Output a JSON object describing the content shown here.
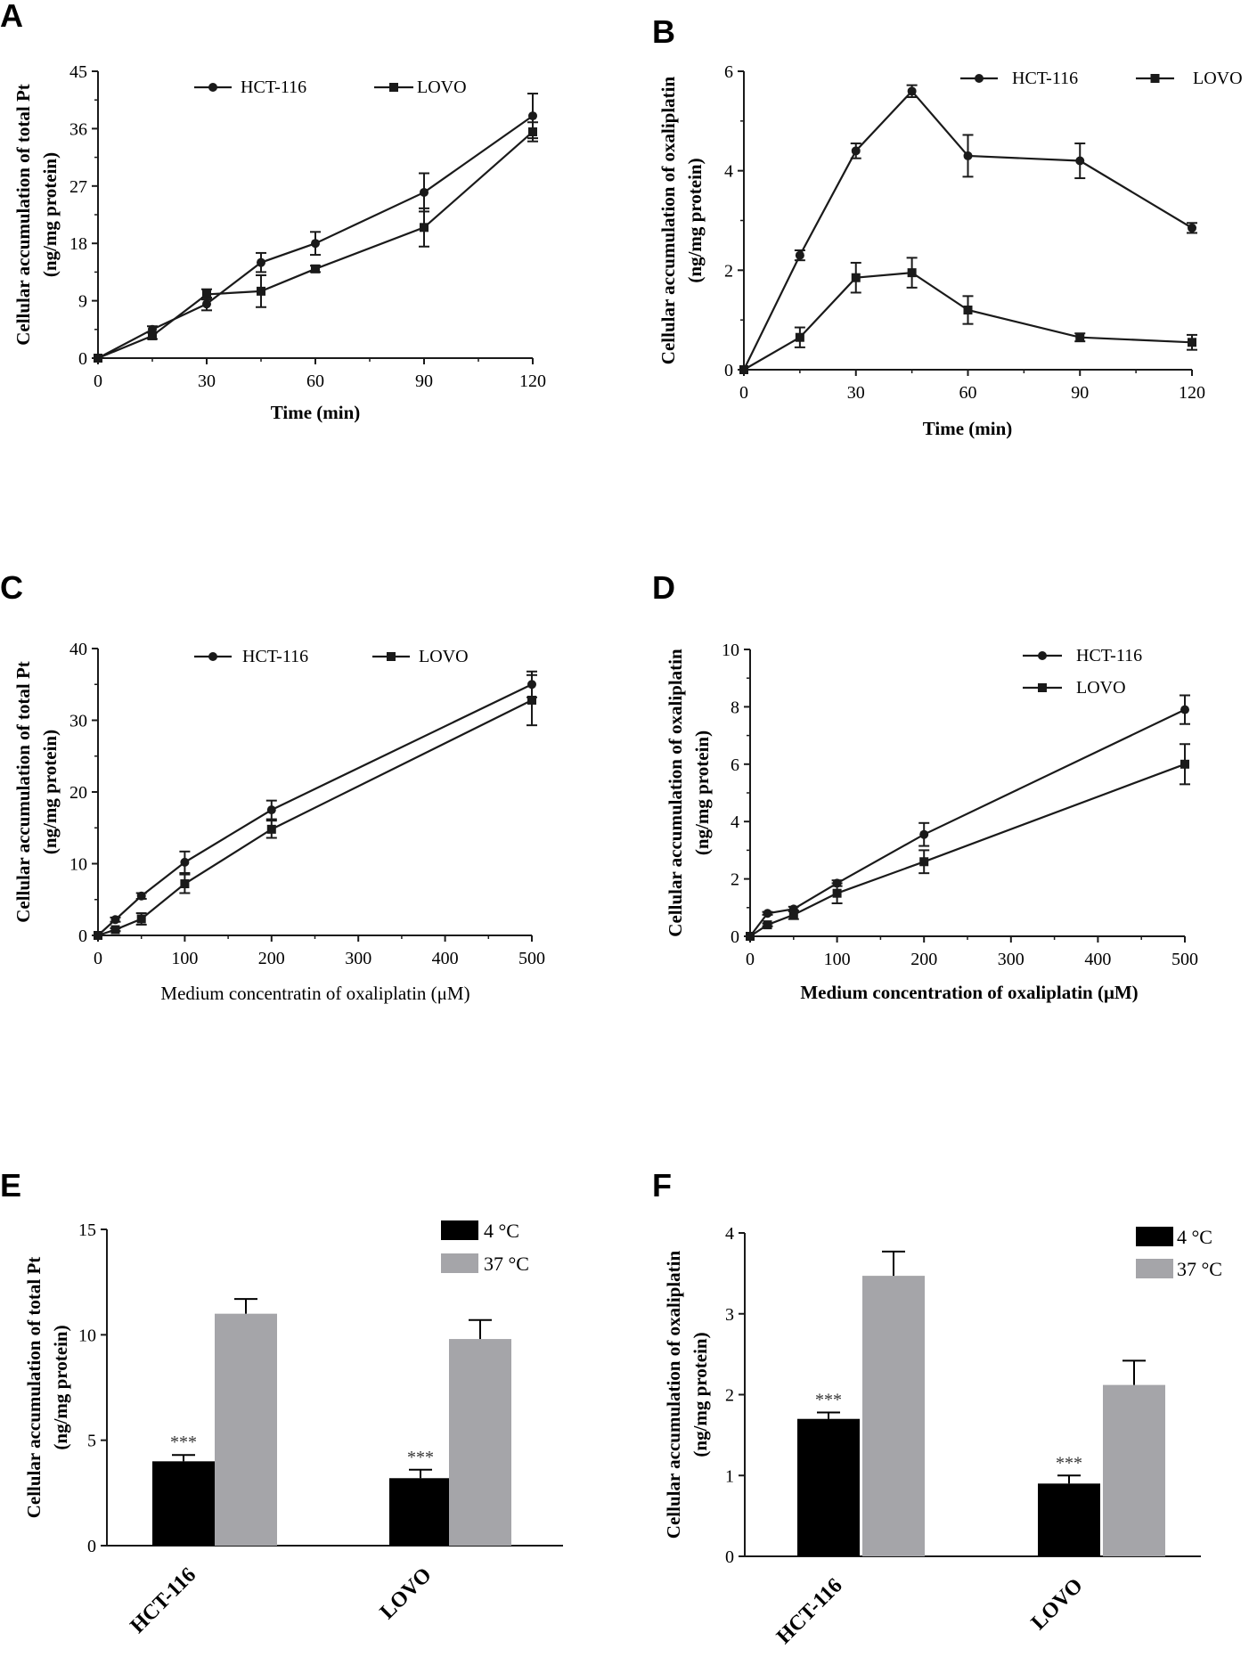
{
  "colors": {
    "line": "#1a1a1a",
    "bar_cold": "#000000",
    "bar_warm": "#a5a5a9",
    "background": "#ffffff"
  },
  "chart_data": [
    {
      "panel": "A",
      "type": "line",
      "title": "",
      "xlabel": "Time (min)",
      "ylabel_line1": "Cellular accumulation of total Pt",
      "ylabel_line2": "(ng/mg protein)",
      "xlim": [
        0,
        120
      ],
      "ylim": [
        0,
        45
      ],
      "xticks": [
        0,
        30,
        60,
        90,
        120
      ],
      "yticks": [
        0,
        9,
        18,
        27,
        36,
        45
      ],
      "legend_position": "top",
      "series": [
        {
          "name": "HCT-116",
          "marker": "circle",
          "x": [
            0,
            15,
            30,
            45,
            60,
            90,
            120
          ],
          "y": [
            0,
            4.5,
            8.5,
            15,
            18,
            26,
            38
          ],
          "err": [
            0,
            0.5,
            1.0,
            1.5,
            1.8,
            3.0,
            3.5
          ]
        },
        {
          "name": "LOVO",
          "marker": "square",
          "x": [
            0,
            15,
            30,
            45,
            60,
            90,
            120
          ],
          "y": [
            0,
            3.5,
            10,
            10.5,
            14,
            20.5,
            35.5
          ],
          "err": [
            0,
            0.5,
            0.8,
            2.5,
            0.5,
            3.0,
            1.5
          ]
        }
      ]
    },
    {
      "panel": "B",
      "type": "line",
      "title": "",
      "xlabel": "Time (min)",
      "ylabel_line1": "Cellular accumulation of oxaliplatin",
      "ylabel_line2": "(ng/mg protein)",
      "xlim": [
        0,
        120
      ],
      "ylim": [
        0,
        6
      ],
      "xticks": [
        0,
        30,
        60,
        90,
        120
      ],
      "yticks": [
        0,
        2,
        4,
        6
      ],
      "legend_position": "top",
      "series": [
        {
          "name": "HCT-116",
          "marker": "circle",
          "x": [
            0,
            15,
            30,
            45,
            60,
            90,
            120
          ],
          "y": [
            0,
            2.3,
            4.4,
            5.6,
            4.3,
            4.2,
            2.85
          ],
          "err": [
            0,
            0.1,
            0.15,
            0.12,
            0.42,
            0.35,
            0.1
          ]
        },
        {
          "name": "LOVO",
          "marker": "square",
          "x": [
            0,
            15,
            30,
            45,
            60,
            90,
            120
          ],
          "y": [
            0,
            0.65,
            1.85,
            1.95,
            1.2,
            0.65,
            0.55
          ],
          "err": [
            0,
            0.2,
            0.3,
            0.3,
            0.28,
            0.08,
            0.15
          ]
        }
      ]
    },
    {
      "panel": "C",
      "type": "line",
      "title": "",
      "xlabel": "Medium concentratin of oxaliplatin (μM)",
      "xlabel_bold": false,
      "ylabel_line1": "Cellular accumulation of total Pt",
      "ylabel_line2": "(ng/mg protein)",
      "xlim": [
        0,
        500
      ],
      "ylim": [
        0,
        40
      ],
      "xticks": [
        0,
        100,
        200,
        300,
        400,
        500
      ],
      "yticks": [
        0,
        10,
        20,
        30,
        40
      ],
      "legend_position": "top",
      "series": [
        {
          "name": "HCT-116",
          "marker": "circle",
          "x": [
            0,
            20,
            50,
            100,
            200,
            500
          ],
          "y": [
            0,
            2.2,
            5.5,
            10.2,
            17.5,
            35
          ],
          "err": [
            0,
            0.3,
            0.4,
            1.5,
            1.3,
            1.8
          ]
        },
        {
          "name": "LOVO",
          "marker": "square",
          "x": [
            0,
            20,
            50,
            100,
            200,
            500
          ],
          "y": [
            0,
            0.8,
            2.3,
            7.2,
            14.8,
            32.8
          ],
          "err": [
            0,
            0.2,
            0.8,
            1.3,
            1.2,
            3.5
          ]
        }
      ]
    },
    {
      "panel": "D",
      "type": "line",
      "title": "",
      "xlabel": "Medium concentration of oxaliplatin (μM)",
      "xlabel_bold": true,
      "ylabel_line1": "Cellular accumulation of oxaliplatin",
      "ylabel_line2": "(ng/mg protein)",
      "xlim": [
        0,
        500
      ],
      "ylim": [
        0,
        10
      ],
      "xticks": [
        0,
        100,
        200,
        300,
        400,
        500
      ],
      "yticks": [
        0,
        2,
        4,
        6,
        8,
        10
      ],
      "legend_position": "top-right",
      "series": [
        {
          "name": "HCT-116",
          "marker": "circle",
          "x": [
            0,
            20,
            50,
            100,
            200,
            500
          ],
          "y": [
            0,
            0.8,
            0.95,
            1.85,
            3.55,
            7.9
          ],
          "err": [
            0,
            0.05,
            0.08,
            0.1,
            0.4,
            0.5
          ]
        },
        {
          "name": "LOVO",
          "marker": "square",
          "x": [
            0,
            20,
            50,
            100,
            200,
            500
          ],
          "y": [
            0,
            0.4,
            0.75,
            1.5,
            2.6,
            6.0
          ],
          "err": [
            0,
            0.05,
            0.15,
            0.35,
            0.4,
            0.7
          ]
        }
      ]
    },
    {
      "panel": "E",
      "type": "bar",
      "title": "",
      "xlabel": "",
      "ylabel_line1": "Cellular accumulation of total Pt",
      "ylabel_line2": "(ng/mg protein)",
      "ylim": [
        0,
        15
      ],
      "yticks": [
        0,
        5,
        10,
        15
      ],
      "categories": [
        "HCT-116",
        "LOVO"
      ],
      "legend_position": "top-right",
      "series": [
        {
          "name": "4 °C",
          "values": [
            4.0,
            3.2
          ],
          "err": [
            0.3,
            0.4
          ],
          "annotation": "***"
        },
        {
          "name": "37 °C",
          "values": [
            11.0,
            9.8
          ],
          "err": [
            0.7,
            0.9
          ],
          "annotation": ""
        }
      ]
    },
    {
      "panel": "F",
      "type": "bar",
      "title": "",
      "xlabel": "",
      "ylabel_line1": "Cellular accumulation of oxaliplatin",
      "ylabel_line2": "(ng/mg protein)",
      "ylim": [
        0,
        4
      ],
      "yticks": [
        0,
        1,
        2,
        3,
        4
      ],
      "categories": [
        "HCT-116",
        "LOVO"
      ],
      "legend_position": "top-right",
      "series": [
        {
          "name": "4 °C",
          "values": [
            1.7,
            0.9
          ],
          "err": [
            0.08,
            0.1
          ],
          "annotation": "***"
        },
        {
          "name": "37 °C",
          "values": [
            3.47,
            2.12
          ],
          "err": [
            0.3,
            0.3
          ],
          "annotation": ""
        }
      ]
    }
  ]
}
